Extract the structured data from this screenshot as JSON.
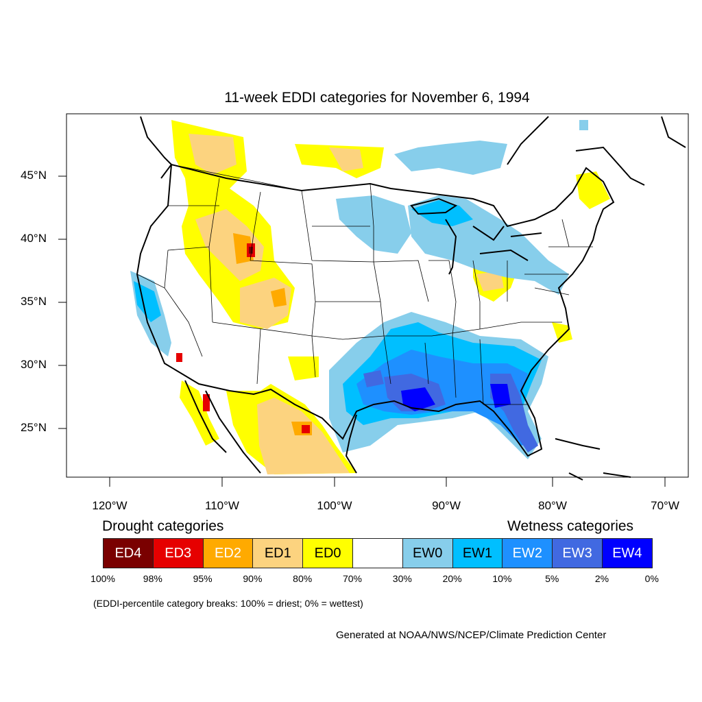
{
  "title": "11-week EDDI categories for November 6, 1994",
  "lat_labels": [
    "45°N",
    "40°N",
    "35°N",
    "30°N",
    "25°N"
  ],
  "lon_labels": [
    "120°W",
    "110°W",
    "100°W",
    "90°W",
    "80°W",
    "70°W"
  ],
  "legend": {
    "drought_heading": "Drought categories",
    "wetness_heading": "Wetness categories",
    "categories": [
      {
        "label": "ED4",
        "color": "#7a0000",
        "text_color": "#ffffff"
      },
      {
        "label": "ED3",
        "color": "#e60000",
        "text_color": "#ffffff"
      },
      {
        "label": "ED2",
        "color": "#ffaa00",
        "text_color": "#ffffff"
      },
      {
        "label": "ED1",
        "color": "#fcd37f",
        "text_color": "#000000"
      },
      {
        "label": "ED0",
        "color": "#ffff00",
        "text_color": "#000000"
      },
      {
        "label": "",
        "color": "#ffffff",
        "text_color": "#000000"
      },
      {
        "label": "EW0",
        "color": "#87ceeb",
        "text_color": "#000000"
      },
      {
        "label": "EW1",
        "color": "#00bfff",
        "text_color": "#000000"
      },
      {
        "label": "EW2",
        "color": "#1e90ff",
        "text_color": "#ffffff"
      },
      {
        "label": "EW3",
        "color": "#4169e1",
        "text_color": "#ffffff"
      },
      {
        "label": "EW4",
        "color": "#0000ff",
        "text_color": "#ffffff"
      }
    ],
    "percentiles": [
      "100%",
      "98%",
      "95%",
      "90%",
      "80%",
      "70%",
      "30%",
      "20%",
      "10%",
      "5%",
      "2%",
      "0%"
    ]
  },
  "footnote": "(EDDI-percentile category breaks: 100% = driest; 0% = wettest)",
  "credit": "Generated at NOAA/NWS/NCEP/Climate Prediction Center"
}
